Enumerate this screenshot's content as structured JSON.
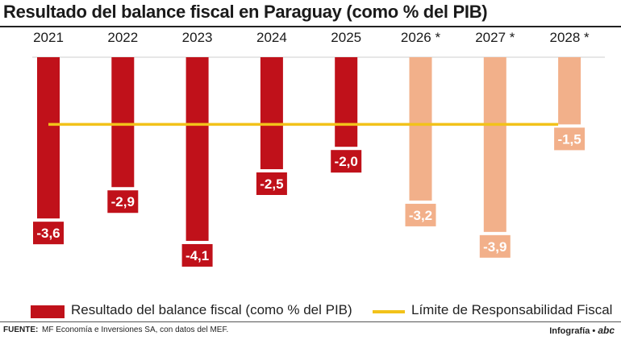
{
  "title": "Resultado del balance fiscal en Paraguay (como % del PIB)",
  "chart_data": {
    "type": "bar",
    "categories": [
      "2021",
      "2022",
      "2023",
      "2024",
      "2025",
      "2026 *",
      "2027 *",
      "2028 *"
    ],
    "values": [
      -3.6,
      -2.9,
      -4.1,
      -2.5,
      -2.0,
      -3.2,
      -3.9,
      -1.5
    ],
    "value_labels": [
      "-3,6",
      "-2,9",
      "-4,1",
      "-2,5",
      "-2,0",
      "-3,2",
      "-3,9",
      "-1,5"
    ],
    "projected": [
      false,
      false,
      false,
      false,
      false,
      true,
      true,
      true
    ],
    "ylim": [
      -4.1,
      0
    ],
    "grid": false,
    "reference_line": {
      "value": -1.5
    },
    "legend": {
      "placement": "bottom",
      "bar_label": "Resultado del balance fiscal (como % del PIB)",
      "line_label": "Límite de Responsabilidad Fiscal"
    },
    "colors": {
      "actual": "#c0111a",
      "projected": "#f2b08a",
      "limit_line": "#f2c21a",
      "axis": "#cfcfcf"
    }
  },
  "footer": {
    "source_key": "FUENTE:",
    "source_text": "MF Economía e Inversiones SA, con datos del MEF.",
    "credit": "Infografía •",
    "credit_logo": "abc"
  }
}
